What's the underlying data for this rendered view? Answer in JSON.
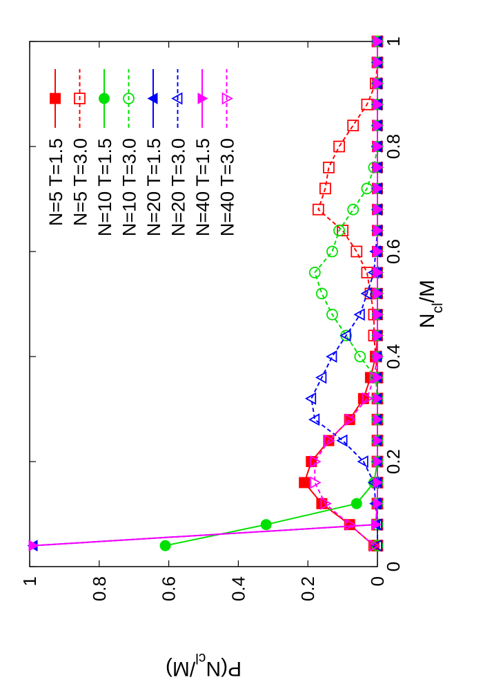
{
  "chart_data": {
    "type": "line",
    "orientation": "rotated-90-clockwise",
    "xlabel": "N_cl/M",
    "ylabel": "P(N_cl/M)",
    "xlim": [
      0,
      1
    ],
    "ylim": [
      0,
      1
    ],
    "xticks": [
      "0",
      "0.2",
      "0.4",
      "0.6",
      "0.8",
      "1"
    ],
    "yticks": [
      "0",
      "0.2",
      "0.4",
      "0.6",
      "0.8",
      "1"
    ],
    "legend_position": "top-right",
    "grid": false,
    "series": [
      {
        "name": "N=5 T=1.5",
        "color": "#ff0000",
        "marker": "square-filled",
        "line": "solid",
        "x": [
          0.04,
          0.08,
          0.12,
          0.16,
          0.2,
          0.24,
          0.28,
          0.32,
          0.36,
          0.4,
          0.44,
          0.48,
          0.52,
          0.56,
          0.6,
          0.64,
          0.68,
          0.72,
          0.76,
          0.8,
          0.84,
          0.88,
          0.92,
          0.96,
          1.0
        ],
        "y": [
          0.01,
          0.08,
          0.16,
          0.21,
          0.19,
          0.14,
          0.08,
          0.04,
          0.02,
          0.005,
          0,
          0,
          0,
          0,
          0,
          0,
          0,
          0,
          0,
          0,
          0,
          0,
          0,
          0,
          0
        ]
      },
      {
        "name": "N=5 T=3.0",
        "color": "#ff0000",
        "marker": "square-open",
        "line": "dashed",
        "x": [
          0.04,
          0.08,
          0.12,
          0.16,
          0.2,
          0.24,
          0.28,
          0.32,
          0.36,
          0.4,
          0.44,
          0.48,
          0.52,
          0.56,
          0.6,
          0.64,
          0.68,
          0.72,
          0.76,
          0.8,
          0.84,
          0.88,
          0.92,
          0.96,
          1.0
        ],
        "y": [
          0,
          0,
          0,
          0,
          0,
          0,
          0,
          0,
          0,
          0.005,
          0.01,
          0.01,
          0.02,
          0.03,
          0.06,
          0.1,
          0.17,
          0.15,
          0.14,
          0.11,
          0.07,
          0.03,
          0.005,
          0,
          0
        ]
      },
      {
        "name": "N=10 T=1.5",
        "color": "#00e000",
        "marker": "circle-filled",
        "line": "solid",
        "x": [
          0.04,
          0.08,
          0.12,
          0.16,
          0.2,
          0.24,
          0.28,
          0.32,
          0.36,
          0.4,
          0.44,
          0.48,
          0.52,
          0.56,
          0.6,
          0.64,
          0.68,
          0.72,
          0.76,
          0.8,
          0.84,
          0.88,
          0.92,
          0.96,
          1.0
        ],
        "y": [
          0.61,
          0.32,
          0.06,
          0.01,
          0,
          0,
          0,
          0,
          0,
          0,
          0,
          0,
          0,
          0,
          0,
          0,
          0,
          0,
          0,
          0,
          0,
          0,
          0,
          0,
          0
        ]
      },
      {
        "name": "N=10 T=3.0",
        "color": "#00e000",
        "marker": "circle-open",
        "line": "dashed",
        "x": [
          0.04,
          0.08,
          0.12,
          0.16,
          0.2,
          0.24,
          0.28,
          0.32,
          0.36,
          0.4,
          0.44,
          0.48,
          0.52,
          0.56,
          0.6,
          0.64,
          0.68,
          0.72,
          0.76,
          0.8,
          0.84,
          0.88,
          0.92,
          0.96,
          1.0
        ],
        "y": [
          0,
          0,
          0,
          0,
          0,
          0,
          0,
          0,
          0.005,
          0.05,
          0.09,
          0.13,
          0.16,
          0.18,
          0.13,
          0.11,
          0.07,
          0.03,
          0.01,
          0,
          0,
          0,
          0,
          0,
          0
        ]
      },
      {
        "name": "N=20 T=1.5",
        "color": "#0000ff",
        "marker": "triangle-filled",
        "line": "solid",
        "x": [
          0.04,
          0.08,
          0.12,
          0.16,
          0.2,
          0.24,
          0.28,
          0.32,
          0.36,
          0.4,
          0.44,
          0.48,
          0.52,
          0.56,
          0.6,
          0.64,
          0.68,
          0.72,
          0.76,
          0.8,
          0.84,
          0.88,
          0.92,
          0.96,
          1.0
        ],
        "y": [
          0.99,
          0.005,
          0,
          0,
          0,
          0,
          0,
          0,
          0,
          0,
          0,
          0,
          0,
          0,
          0,
          0,
          0,
          0,
          0,
          0,
          0,
          0,
          0,
          0,
          0
        ]
      },
      {
        "name": "N=20 T=3.0",
        "color": "#0000ff",
        "marker": "triangle-open",
        "line": "dashed",
        "x": [
          0.04,
          0.08,
          0.12,
          0.16,
          0.2,
          0.24,
          0.28,
          0.32,
          0.36,
          0.4,
          0.44,
          0.48,
          0.52,
          0.56,
          0.6,
          0.64,
          0.68,
          0.72,
          0.76,
          0.8,
          0.84,
          0.88,
          0.92,
          0.96,
          1.0
        ],
        "y": [
          0,
          0,
          0.005,
          0.01,
          0.04,
          0.1,
          0.18,
          0.19,
          0.16,
          0.13,
          0.09,
          0.05,
          0.03,
          0.01,
          0.005,
          0,
          0,
          0,
          0,
          0,
          0,
          0,
          0,
          0,
          0
        ]
      },
      {
        "name": "N=40 T=1.5",
        "color": "#ff00ff",
        "marker": "triangle-down-filled",
        "line": "solid",
        "x": [
          0.04,
          0.08,
          0.12,
          0.16,
          0.2,
          0.24,
          0.28,
          0.32,
          0.36,
          0.4,
          0.44,
          0.48,
          0.52,
          0.56,
          0.6,
          0.64,
          0.68,
          0.72,
          0.76,
          0.8,
          0.84,
          0.88,
          0.92,
          0.96,
          1.0
        ],
        "y": [
          0.99,
          0.005,
          0,
          0,
          0,
          0,
          0,
          0,
          0,
          0,
          0,
          0,
          0,
          0,
          0,
          0,
          0,
          0,
          0,
          0,
          0,
          0,
          0,
          0,
          0
        ]
      },
      {
        "name": "N=40 T=3.0",
        "color": "#ff00ff",
        "marker": "triangle-down-open",
        "line": "dashed",
        "x": [
          0.04,
          0.08,
          0.12,
          0.16,
          0.2,
          0.24,
          0.28,
          0.32,
          0.36,
          0.4,
          0.44,
          0.48,
          0.52,
          0.56,
          0.6,
          0.64,
          0.68,
          0.72,
          0.76,
          0.8,
          0.84,
          0.88,
          0.92,
          0.96,
          1.0
        ],
        "y": [
          0.01,
          0.08,
          0.15,
          0.18,
          0.18,
          0.14,
          0.08,
          0.03,
          0.01,
          0,
          0,
          0,
          0,
          0,
          0,
          0,
          0,
          0,
          0,
          0,
          0,
          0,
          0,
          0,
          0
        ]
      }
    ]
  }
}
